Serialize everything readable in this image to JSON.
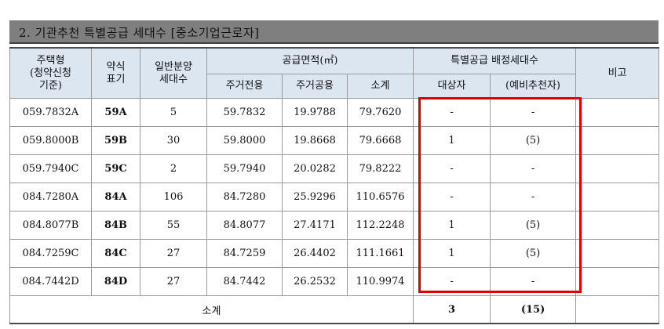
{
  "section_title": "2. 기관추천 특별공급 세대수 [중소기업근로자]",
  "headers": {
    "housing_type": "주택형\n(청약신청\n기준)",
    "abbrev": "약식\n표기",
    "general_units": "일반분양\n세대수",
    "supply_area": "공급면적(㎡)",
    "exclusive": "주거전용",
    "common": "주거공용",
    "subtotal": "소계",
    "special_alloc": "특별공급 배정세대수",
    "target": "대상자",
    "reserve": "(예비추천자)",
    "remarks": "비고"
  },
  "rows": [
    {
      "type": "059.7832A",
      "abbr": "59A",
      "units": "5",
      "exclusive": "59.7832",
      "common": "19.9788",
      "total": "79.7620",
      "target": "-",
      "reserve": "-",
      "remarks": ""
    },
    {
      "type": "059.8000B",
      "abbr": "59B",
      "units": "30",
      "exclusive": "59.8000",
      "common": "19.8668",
      "total": "79.6668",
      "target": "1",
      "reserve": "(5)",
      "remarks": ""
    },
    {
      "type": "059.7940C",
      "abbr": "59C",
      "units": "2",
      "exclusive": "59.7940",
      "common": "20.0282",
      "total": "79.8222",
      "target": "-",
      "reserve": "-",
      "remarks": ""
    },
    {
      "type": "084.7280A",
      "abbr": "84A",
      "units": "106",
      "exclusive": "84.7280",
      "common": "25.9296",
      "total": "110.6576",
      "target": "-",
      "reserve": "-",
      "remarks": ""
    },
    {
      "type": "084.8077B",
      "abbr": "84B",
      "units": "55",
      "exclusive": "84.8077",
      "common": "27.4171",
      "total": "112.2248",
      "target": "1",
      "reserve": "(5)",
      "remarks": ""
    },
    {
      "type": "084.7259C",
      "abbr": "84C",
      "units": "27",
      "exclusive": "84.7259",
      "common": "26.4402",
      "total": "111.1661",
      "target": "1",
      "reserve": "(5)",
      "remarks": ""
    },
    {
      "type": "084.7442D",
      "abbr": "84D",
      "units": "27",
      "exclusive": "84.7442",
      "common": "26.2532",
      "total": "110.9974",
      "target": "-",
      "reserve": "-",
      "remarks": ""
    }
  ],
  "footer": {
    "label": "소계",
    "target": "3",
    "reserve": "(15)",
    "remarks": ""
  },
  "colors": {
    "header_bg": "#dce6f1",
    "title_bg": "#7f7f7f",
    "highlight": "#e00000"
  }
}
